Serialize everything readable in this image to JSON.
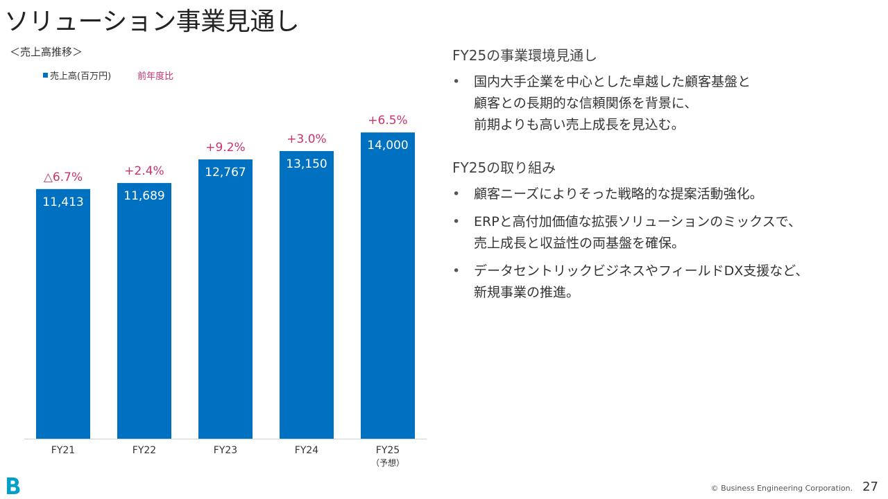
{
  "title": "ソリューション事業見通し",
  "chart_heading": "＜売上高推移＞",
  "legend": {
    "series_label": "売上高(百万円)",
    "ratio_label": "前年度比"
  },
  "colors": {
    "bar": "#0070c0",
    "ratio": "#c8326e",
    "axis": "#d0d0d0"
  },
  "chart_data": {
    "type": "bar",
    "title": "＜売上高推移＞",
    "categories": [
      "FY21",
      "FY22",
      "FY23",
      "FY24",
      "FY25"
    ],
    "category_notes": [
      "",
      "",
      "",
      "",
      "（予想）"
    ],
    "series": [
      {
        "name": "売上高(百万円)",
        "values": [
          11413,
          11689,
          12767,
          13150,
          14000
        ]
      }
    ],
    "value_labels": [
      "11,413",
      "11,689",
      "12,767",
      "13,150",
      "14,000"
    ],
    "yoy_labels": [
      "△6.7%",
      "+2.4%",
      "+9.2%",
      "+3.0%",
      "+6.5%"
    ],
    "ylim": [
      0,
      16000
    ],
    "grid": false,
    "legend_position": "top-left"
  },
  "outlook": {
    "heading": "FY25の事業環境見通し",
    "bullets": [
      {
        "lines": [
          "国内大手企業を中心とした卓越した顧客基盤と",
          "顧客との長期的な信頼関係を背景に、",
          "前期よりも高い売上成長を見込む。"
        ]
      }
    ]
  },
  "initiatives": {
    "heading": "FY25の取り組み",
    "bullets": [
      {
        "lines": [
          "顧客ニーズによりそった戦略的な提案活動強化。"
        ]
      },
      {
        "lines": [
          "ERPと高付加価値な拡張ソリューションのミックスで、",
          "売上成長と収益性の両基盤を確保。"
        ]
      },
      {
        "lines": [
          "データセントリックビジネスやフィールドDX支援など、",
          "新規事業の推進。"
        ]
      }
    ]
  },
  "bullet_char": "•",
  "footer": {
    "copyright": "© Business Engineering Corporation.",
    "page_number": "27"
  }
}
